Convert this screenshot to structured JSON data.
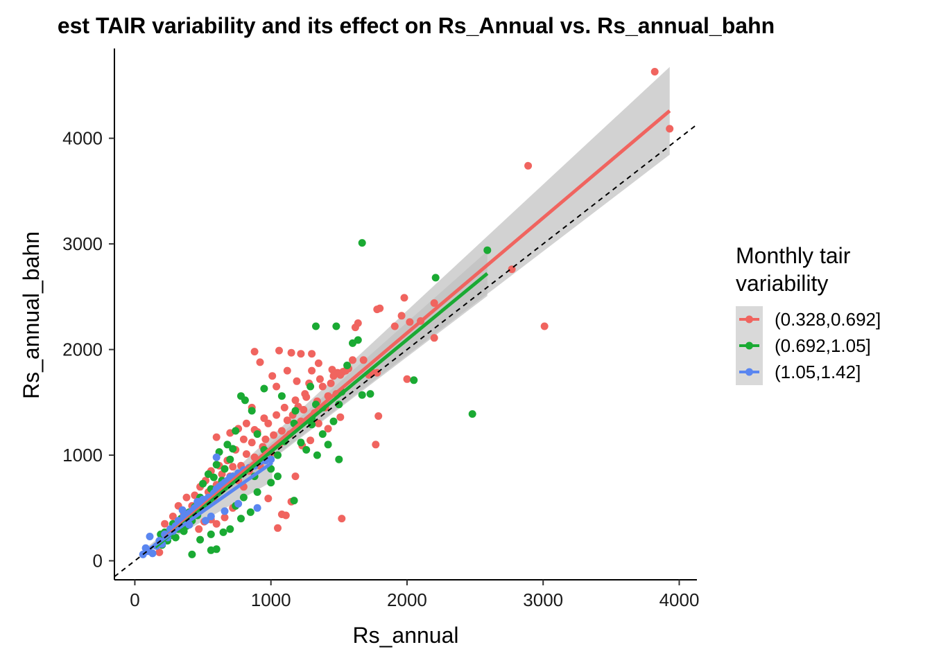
{
  "chart_data": {
    "type": "scatter",
    "title": "est TAIR variability and its effect on Rs_Annual vs. Rs_annual_bahn",
    "xlabel": "Rs_annual",
    "ylabel": "Rs_annual_bahn",
    "xlim": [
      -150,
      4130
    ],
    "ylim": [
      -180,
      4850
    ],
    "xticks": [
      0,
      1000,
      2000,
      3000,
      4000
    ],
    "yticks": [
      0,
      1000,
      2000,
      3000,
      4000
    ],
    "grid": false,
    "reference_line": {
      "style": "dashed",
      "slope": 1,
      "intercept": 0
    },
    "legend": {
      "title_lines": [
        "Monthly tair",
        "variability"
      ],
      "placement": "right"
    },
    "series": [
      {
        "name": "(0.328,0.692]",
        "color": "#F0645F",
        "fit": {
          "x": [
            150,
            3930
          ],
          "y": [
            140,
            4260
          ],
          "ci_start": [
            250,
            35
          ],
          "ci_end": [
            3930,
            380
          ]
        },
        "points": [
          [
            3820,
            4630
          ],
          [
            3930,
            4090
          ],
          [
            2890,
            3740
          ],
          [
            2770,
            2760
          ],
          [
            3010,
            2220
          ],
          [
            2200,
            2440
          ],
          [
            2200,
            2110
          ],
          [
            2100,
            2270
          ],
          [
            1980,
            2490
          ],
          [
            1960,
            2320
          ],
          [
            1910,
            2220
          ],
          [
            2020,
            2260
          ],
          [
            1780,
            2380
          ],
          [
            1800,
            2390
          ],
          [
            1780,
            1780
          ],
          [
            1790,
            1370
          ],
          [
            1770,
            1100
          ],
          [
            2000,
            1720
          ],
          [
            1740,
            1790
          ],
          [
            1720,
            1760
          ],
          [
            1680,
            1900
          ],
          [
            1640,
            2250
          ],
          [
            1620,
            2210
          ],
          [
            1600,
            1900
          ],
          [
            1570,
            1820
          ],
          [
            1530,
            1790
          ],
          [
            1510,
            1760
          ],
          [
            1490,
            1780
          ],
          [
            1480,
            1580
          ],
          [
            1460,
            1750
          ],
          [
            1440,
            1680
          ],
          [
            1420,
            1560
          ],
          [
            1400,
            1450
          ],
          [
            1380,
            1650
          ],
          [
            1360,
            1720
          ],
          [
            1340,
            1510
          ],
          [
            1320,
            1400
          ],
          [
            1300,
            1800
          ],
          [
            1280,
            1680
          ],
          [
            1260,
            1550
          ],
          [
            1240,
            1430
          ],
          [
            1220,
            1320
          ],
          [
            1200,
            1460
          ],
          [
            1180,
            1520
          ],
          [
            1160,
            1380
          ],
          [
            1140,
            1200
          ],
          [
            1120,
            1330
          ],
          [
            1100,
            1450
          ],
          [
            1080,
            1230
          ],
          [
            1060,
            1100
          ],
          [
            1040,
            1380
          ],
          [
            1020,
            1190
          ],
          [
            1000,
            1020
          ],
          [
            980,
            1300
          ],
          [
            960,
            1150
          ],
          [
            940,
            1080
          ],
          [
            920,
            900
          ],
          [
            900,
            1220
          ],
          [
            880,
            980
          ],
          [
            860,
            1120
          ],
          [
            840,
            850
          ],
          [
            820,
            1010
          ],
          [
            800,
            1150
          ],
          [
            780,
            900
          ],
          [
            760,
            760
          ],
          [
            740,
            1050
          ],
          [
            720,
            890
          ],
          [
            700,
            800
          ],
          [
            680,
            950
          ],
          [
            660,
            700
          ],
          [
            640,
            820
          ],
          [
            620,
            900
          ],
          [
            600,
            720
          ],
          [
            580,
            600
          ],
          [
            560,
            850
          ],
          [
            540,
            650
          ],
          [
            520,
            760
          ],
          [
            500,
            550
          ],
          [
            480,
            700
          ],
          [
            460,
            480
          ],
          [
            440,
            620
          ],
          [
            420,
            520
          ],
          [
            400,
            430
          ],
          [
            380,
            600
          ],
          [
            360,
            450
          ],
          [
            340,
            380
          ],
          [
            320,
            520
          ],
          [
            300,
            330
          ],
          [
            280,
            420
          ],
          [
            260,
            300
          ],
          [
            240,
            260
          ],
          [
            220,
            350
          ],
          [
            200,
            200
          ],
          [
            180,
            80
          ],
          [
            1520,
            400
          ],
          [
            1050,
            310
          ],
          [
            1080,
            440
          ],
          [
            1110,
            430
          ],
          [
            1010,
            1750
          ],
          [
            1060,
            1990
          ],
          [
            1150,
            1970
          ],
          [
            1220,
            1960
          ],
          [
            1300,
            1960
          ],
          [
            1350,
            1870
          ],
          [
            1450,
            1810
          ],
          [
            1550,
            1800
          ],
          [
            1150,
            560
          ],
          [
            980,
            590
          ],
          [
            920,
            1880
          ],
          [
            880,
            1980
          ],
          [
            860,
            1450
          ],
          [
            820,
            1300
          ],
          [
            760,
            1250
          ],
          [
            700,
            1210
          ],
          [
            600,
            1170
          ],
          [
            1180,
            800
          ],
          [
            1230,
            1090
          ],
          [
            1290,
            1140
          ],
          [
            1350,
            1300
          ],
          [
            1420,
            1250
          ],
          [
            1510,
            1360
          ],
          [
            1250,
            1580
          ],
          [
            1190,
            1700
          ],
          [
            1120,
            1800
          ],
          [
            1040,
            1650
          ],
          [
            950,
            1350
          ],
          [
            880,
            1240
          ],
          [
            800,
            700
          ],
          [
            720,
            500
          ],
          [
            660,
            410
          ],
          [
            600,
            350
          ],
          [
            560,
            390
          ],
          [
            510,
            370
          ],
          [
            470,
            300
          ]
        ]
      },
      {
        "name": "(0.692,1.05]",
        "color": "#1AAA33",
        "fit": {
          "x": [
            150,
            2590
          ],
          "y": [
            130,
            2720
          ],
          "ci_start": [
            250,
            30
          ],
          "ci_end": [
            2590,
            180
          ]
        },
        "points": [
          [
            1670,
            3010
          ],
          [
            2590,
            2940
          ],
          [
            2210,
            2680
          ],
          [
            2480,
            1390
          ],
          [
            2050,
            1710
          ],
          [
            1640,
            2090
          ],
          [
            1600,
            2060
          ],
          [
            1560,
            1850
          ],
          [
            1480,
            2220
          ],
          [
            1330,
            2220
          ],
          [
            1730,
            1580
          ],
          [
            1670,
            1570
          ],
          [
            1520,
            1600
          ],
          [
            1500,
            1480
          ],
          [
            1460,
            1320
          ],
          [
            1420,
            1100
          ],
          [
            1380,
            1200
          ],
          [
            1340,
            1000
          ],
          [
            1300,
            1350
          ],
          [
            1260,
            1050
          ],
          [
            1220,
            1120
          ],
          [
            1170,
            570
          ],
          [
            1500,
            960
          ],
          [
            1380,
            1450
          ],
          [
            1300,
            1290
          ],
          [
            1100,
            1130
          ],
          [
            1050,
            1000
          ],
          [
            1000,
            870
          ],
          [
            950,
            1050
          ],
          [
            900,
            1200
          ],
          [
            880,
            800
          ],
          [
            860,
            1420
          ],
          [
            810,
            1520
          ],
          [
            780,
            1560
          ],
          [
            740,
            1230
          ],
          [
            720,
            1060
          ],
          [
            700,
            960
          ],
          [
            680,
            1100
          ],
          [
            660,
            870
          ],
          [
            640,
            760
          ],
          [
            620,
            1030
          ],
          [
            600,
            910
          ],
          [
            580,
            790
          ],
          [
            560,
            680
          ],
          [
            540,
            820
          ],
          [
            520,
            560
          ],
          [
            500,
            730
          ],
          [
            480,
            600
          ],
          [
            460,
            430
          ],
          [
            440,
            510
          ],
          [
            420,
            380
          ],
          [
            400,
            460
          ],
          [
            380,
            330
          ],
          [
            360,
            280
          ],
          [
            340,
            400
          ],
          [
            320,
            300
          ],
          [
            300,
            220
          ],
          [
            280,
            350
          ],
          [
            260,
            240
          ],
          [
            240,
            190
          ],
          [
            220,
            270
          ],
          [
            200,
            150
          ],
          [
            190,
            250
          ],
          [
            420,
            60
          ],
          [
            560,
            100
          ],
          [
            600,
            110
          ],
          [
            780,
            400
          ],
          [
            850,
            460
          ],
          [
            800,
            600
          ],
          [
            700,
            300
          ],
          [
            650,
            270
          ],
          [
            560,
            250
          ],
          [
            480,
            200
          ],
          [
            950,
            1630
          ],
          [
            1080,
            1560
          ],
          [
            1180,
            1420
          ],
          [
            1050,
            800
          ],
          [
            1000,
            740
          ],
          [
            1170,
            1300
          ],
          [
            1290,
            1650
          ],
          [
            1330,
            1480
          ],
          [
            900,
            650
          ],
          [
            740,
            520
          ]
        ]
      },
      {
        "name": "(1.05,1.42]",
        "color": "#5A86F0",
        "fit": {
          "x": [
            60,
            1010
          ],
          "y": [
            70,
            930
          ],
          "ci_start": [
            90,
            40
          ],
          "ci_end": [
            1010,
            140
          ]
        },
        "points": [
          [
            60,
            60
          ],
          [
            80,
            120
          ],
          [
            100,
            90
          ],
          [
            110,
            230
          ],
          [
            130,
            70
          ],
          [
            160,
            140
          ],
          [
            180,
            190
          ],
          [
            200,
            160
          ],
          [
            220,
            250
          ],
          [
            240,
            220
          ],
          [
            260,
            300
          ],
          [
            280,
            280
          ],
          [
            300,
            330
          ],
          [
            320,
            380
          ],
          [
            340,
            360
          ],
          [
            360,
            420
          ],
          [
            380,
            410
          ],
          [
            400,
            450
          ],
          [
            420,
            470
          ],
          [
            440,
            500
          ],
          [
            460,
            520
          ],
          [
            480,
            540
          ],
          [
            500,
            580
          ],
          [
            540,
            600
          ],
          [
            580,
            640
          ],
          [
            600,
            680
          ],
          [
            620,
            700
          ],
          [
            640,
            720
          ],
          [
            660,
            740
          ],
          [
            680,
            760
          ],
          [
            700,
            790
          ],
          [
            720,
            800
          ],
          [
            760,
            830
          ],
          [
            800,
            860
          ],
          [
            840,
            880
          ],
          [
            880,
            900
          ],
          [
            920,
            940
          ],
          [
            960,
            950
          ],
          [
            1000,
            960
          ],
          [
            600,
            980
          ],
          [
            350,
            480
          ],
          [
            400,
            340
          ],
          [
            460,
            560
          ],
          [
            900,
            500
          ],
          [
            660,
            470
          ],
          [
            520,
            380
          ],
          [
            560,
            420
          ],
          [
            760,
            540
          ]
        ]
      }
    ]
  }
}
